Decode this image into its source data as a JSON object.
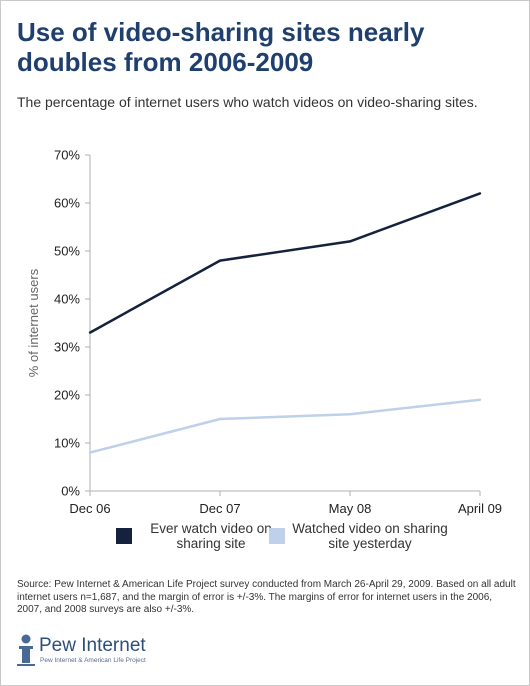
{
  "header": {
    "title": "Use of video-sharing sites nearly doubles from 2006-2009",
    "subtitle": "The percentage of internet users who watch videos on video-sharing sites."
  },
  "chart_data": {
    "type": "line",
    "x": [
      "Dec 06",
      "Dec 07",
      "May 08",
      "April 09"
    ],
    "ylabel": "% of internet users",
    "ylim": [
      0,
      70
    ],
    "y_ticks": [
      "0%",
      "10%",
      "20%",
      "30%",
      "40%",
      "50%",
      "60%",
      "70%"
    ],
    "grid": false,
    "legend_position": "bottom",
    "series": [
      {
        "name": "Ever watch video on sharing site",
        "legend_lines": [
          "Ever watch video on",
          "sharing site"
        ],
        "values": [
          33,
          48,
          52,
          62
        ],
        "color": "#15223d"
      },
      {
        "name": "Watched video on sharing site yesterday",
        "legend_lines": [
          "Watched video on sharing",
          "site yesterday"
        ],
        "values": [
          8,
          15,
          16,
          19
        ],
        "color": "#bfd0ea"
      }
    ]
  },
  "footer": {
    "source": "Source: Pew Internet & American Life Project survey conducted from March 26-April 29, 2009. Based on all adult internet users n=1,687, and the margin of error is +/-3%. The margins of error for internet users in the 2006, 2007, and 2008 surveys are also +/-3%.",
    "logo_name": "Pew Internet",
    "logo_sub": "Pew Internet & American Life Project"
  },
  "colors": {
    "title": "#1f3f6e",
    "axis": "#b0b0b0"
  }
}
